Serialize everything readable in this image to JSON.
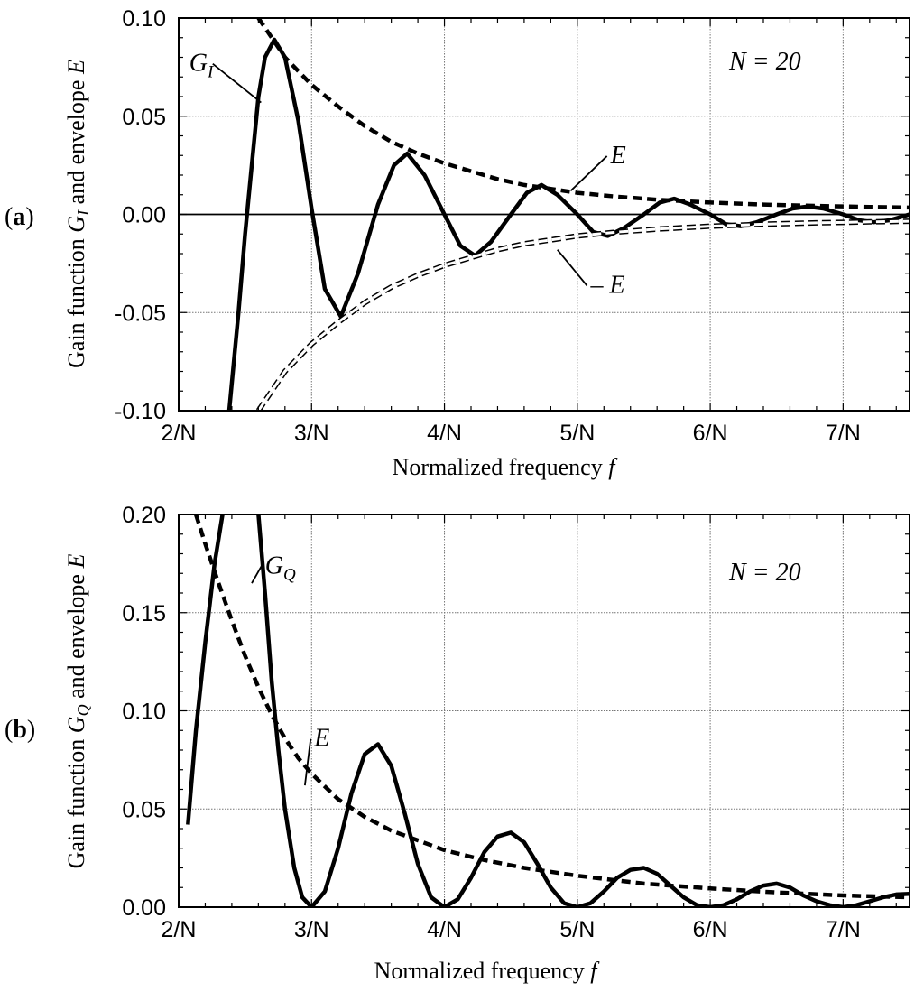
{
  "chart_data": [
    {
      "type": "line",
      "panel_label": "a",
      "n_text": "N = 20",
      "N": 20,
      "ylabel": {
        "prefix": "Gain function ",
        "sym": "G",
        "sub": "I",
        "suffix": " and envelope ",
        "env": "E"
      },
      "xlabel": {
        "text": "Normalized frequency ",
        "sym": "f"
      },
      "xlim": [
        2,
        7.5
      ],
      "ylim": [
        -0.1,
        0.1
      ],
      "x_ticks": [
        2,
        3,
        4,
        5,
        6,
        7
      ],
      "x_tick_labels": [
        "2/N",
        "3/N",
        "4/N",
        "5/N",
        "6/N",
        "7/N"
      ],
      "y_ticks": [
        -0.1,
        -0.05,
        0,
        0.05,
        0.1
      ],
      "y_tick_labels": [
        "-0.10",
        "-0.05",
        "0.00",
        "0.05",
        "0.10"
      ],
      "zero_line": true,
      "grid": true,
      "series": [
        {
          "name": "G_I",
          "style": "solid",
          "x": [
            2.38,
            2.45,
            2.5,
            2.55,
            2.6,
            2.65,
            2.72,
            2.8,
            2.9,
            3.0,
            3.1,
            3.22,
            3.35,
            3.5,
            3.62,
            3.72,
            3.85,
            4.0,
            4.12,
            4.23,
            4.35,
            4.5,
            4.62,
            4.73,
            4.85,
            5.0,
            5.12,
            5.23,
            5.35,
            5.5,
            5.62,
            5.73,
            5.85,
            6.0,
            6.12,
            6.23,
            6.35,
            6.5,
            6.62,
            6.73,
            6.85,
            7.0,
            7.12,
            7.23,
            7.35,
            7.5
          ],
          "y": [
            -0.1,
            -0.05,
            -0.01,
            0.025,
            0.06,
            0.08,
            0.089,
            0.08,
            0.048,
            0.003,
            -0.038,
            -0.052,
            -0.03,
            0.005,
            0.025,
            0.031,
            0.02,
            0.0,
            -0.016,
            -0.021,
            -0.014,
            0.0,
            0.011,
            0.015,
            0.01,
            0.0,
            -0.009,
            -0.011,
            -0.007,
            0.0,
            0.006,
            0.008,
            0.005,
            0.0,
            -0.005,
            -0.006,
            -0.004,
            0.0,
            0.003,
            0.004,
            0.003,
            0.0,
            -0.003,
            -0.004,
            -0.003,
            0.0
          ]
        },
        {
          "name": "E",
          "style": "dashed",
          "x": [
            2.6,
            2.8,
            3.0,
            3.2,
            3.4,
            3.6,
            3.8,
            4.0,
            4.2,
            4.4,
            4.6,
            4.8,
            5.0,
            5.3,
            5.6,
            6.0,
            6.4,
            6.8,
            7.2,
            7.5
          ],
          "y": [
            0.1,
            0.08,
            0.066,
            0.055,
            0.045,
            0.037,
            0.031,
            0.026,
            0.022,
            0.018,
            0.015,
            0.013,
            0.011,
            0.009,
            0.0075,
            0.006,
            0.005,
            0.0043,
            0.0038,
            0.0035
          ]
        },
        {
          "name": "-E",
          "style": "hollow-dashed",
          "x": [
            2.6,
            2.8,
            3.0,
            3.2,
            3.4,
            3.6,
            3.8,
            4.0,
            4.2,
            4.4,
            4.6,
            4.8,
            5.0,
            5.3,
            5.6,
            6.0,
            6.4,
            6.8,
            7.2,
            7.5
          ],
          "y": [
            -0.1,
            -0.08,
            -0.066,
            -0.055,
            -0.045,
            -0.037,
            -0.031,
            -0.026,
            -0.022,
            -0.018,
            -0.015,
            -0.013,
            -0.011,
            -0.009,
            -0.0075,
            -0.006,
            -0.005,
            -0.0043,
            -0.0038,
            -0.0035
          ]
        }
      ],
      "annotations": [
        {
          "text": "G",
          "sub": "I",
          "x": 2.62,
          "y": 0.057,
          "tx": 2.08,
          "ty": 0.073
        },
        {
          "text": "E",
          "sub": "",
          "x": 4.95,
          "y": 0.012,
          "tx": 5.25,
          "ty": 0.026
        },
        {
          "text": "– E",
          "sub": "",
          "x": 4.85,
          "y": -0.018,
          "tx": 5.1,
          "ty": -0.04
        }
      ]
    },
    {
      "type": "line",
      "panel_label": "b",
      "n_text": "N = 20",
      "N": 20,
      "ylabel": {
        "prefix": "Gain function ",
        "sym": "G",
        "sub": "Q",
        "suffix": " and envelope ",
        "env": "E"
      },
      "xlabel": {
        "text": "Normalized frequency ",
        "sym": "f"
      },
      "xlim": [
        2,
        7.5
      ],
      "ylim": [
        0,
        0.2
      ],
      "x_ticks": [
        2,
        3,
        4,
        5,
        6,
        7
      ],
      "x_tick_labels": [
        "2/N",
        "3/N",
        "4/N",
        "5/N",
        "6/N",
        "7/N"
      ],
      "y_ticks": [
        0,
        0.05,
        0.1,
        0.15,
        0.2
      ],
      "y_tick_labels": [
        "0.00",
        "0.05",
        "0.10",
        "0.15",
        "0.20"
      ],
      "zero_line": false,
      "grid": true,
      "series": [
        {
          "name": "G_Q_left",
          "style": "solid",
          "x": [
            2.07,
            2.13,
            2.2,
            2.27,
            2.33
          ],
          "y": [
            0.042,
            0.09,
            0.135,
            0.175,
            0.2
          ]
        },
        {
          "name": "G_Q",
          "style": "solid",
          "x": [
            2.6,
            2.65,
            2.7,
            2.75,
            2.8,
            2.87,
            2.93,
            3.0,
            3.1,
            3.2,
            3.3,
            3.4,
            3.5,
            3.6,
            3.7,
            3.8,
            3.9,
            4.0,
            4.1,
            4.2,
            4.3,
            4.4,
            4.5,
            4.6,
            4.7,
            4.8,
            4.9,
            5.0,
            5.1,
            5.2,
            5.3,
            5.4,
            5.5,
            5.6,
            5.7,
            5.8,
            5.9,
            6.0,
            6.1,
            6.2,
            6.3,
            6.4,
            6.5,
            6.6,
            6.7,
            6.8,
            6.9,
            7.0,
            7.1,
            7.2,
            7.3,
            7.4,
            7.5
          ],
          "y": [
            0.2,
            0.16,
            0.115,
            0.08,
            0.05,
            0.02,
            0.005,
            0.0,
            0.008,
            0.03,
            0.058,
            0.078,
            0.083,
            0.072,
            0.048,
            0.022,
            0.005,
            0.0,
            0.004,
            0.015,
            0.028,
            0.036,
            0.038,
            0.033,
            0.022,
            0.01,
            0.002,
            0.0,
            0.002,
            0.008,
            0.015,
            0.019,
            0.02,
            0.017,
            0.011,
            0.005,
            0.001,
            0.0,
            0.001,
            0.004,
            0.008,
            0.011,
            0.012,
            0.01,
            0.006,
            0.003,
            0.001,
            0.0,
            0.001,
            0.003,
            0.005,
            0.0065,
            0.0068
          ]
        },
        {
          "name": "E",
          "style": "dashed",
          "x": [
            2.13,
            2.2,
            2.3,
            2.4,
            2.5,
            2.6,
            2.7,
            2.8,
            2.9,
            3.0,
            3.2,
            3.4,
            3.6,
            3.8,
            4.0,
            4.3,
            4.6,
            5.0,
            5.5,
            6.0,
            6.5,
            7.0,
            7.5
          ],
          "y": [
            0.2,
            0.185,
            0.165,
            0.146,
            0.128,
            0.112,
            0.098,
            0.086,
            0.076,
            0.068,
            0.055,
            0.046,
            0.039,
            0.034,
            0.029,
            0.024,
            0.02,
            0.016,
            0.012,
            0.0095,
            0.0075,
            0.006,
            0.005
          ]
        }
      ],
      "annotations": [
        {
          "text": "G",
          "sub": "Q",
          "x": 2.55,
          "y": 0.165,
          "tx": 2.65,
          "ty": 0.17
        },
        {
          "text": "E",
          "sub": "",
          "x": 2.95,
          "y": 0.062,
          "tx": 3.02,
          "ty": 0.082
        }
      ]
    }
  ]
}
